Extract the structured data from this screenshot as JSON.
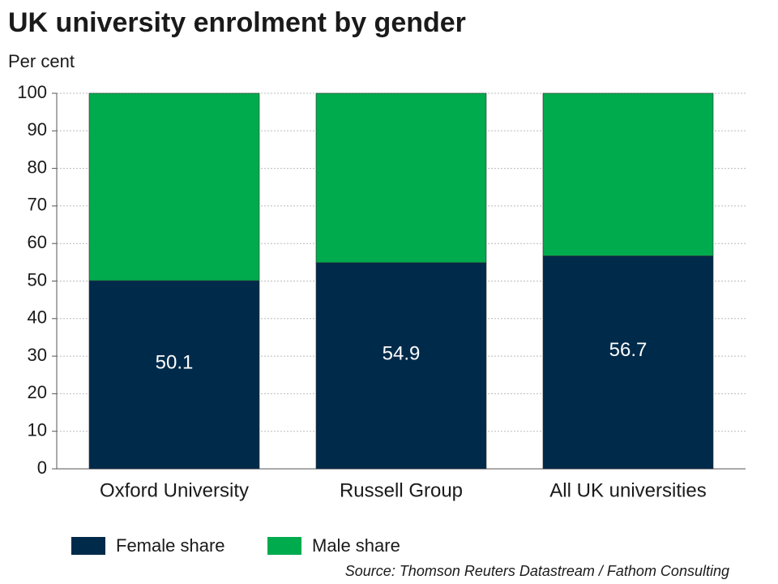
{
  "chart_data": {
    "type": "stacked_bar",
    "title": "UK university enrolment by gender",
    "y_axis_label": "Per cent",
    "source": "Source: Thomson Reuters Datastream / Fathom Consulting",
    "categories": [
      "Oxford University",
      "Russell Group",
      "All UK universities"
    ],
    "series": [
      {
        "name": "Female share",
        "color": "#002a4a",
        "values": [
          50.1,
          54.9,
          56.7
        ]
      },
      {
        "name": "Male share",
        "color": "#00ab4e",
        "values": [
          49.9,
          45.1,
          43.3
        ]
      }
    ],
    "ylim": [
      0,
      100
    ],
    "yticks": [
      0,
      10,
      20,
      30,
      40,
      50,
      60,
      70,
      80,
      90,
      100
    ],
    "grid": true,
    "labeled_series": [
      0
    ]
  }
}
